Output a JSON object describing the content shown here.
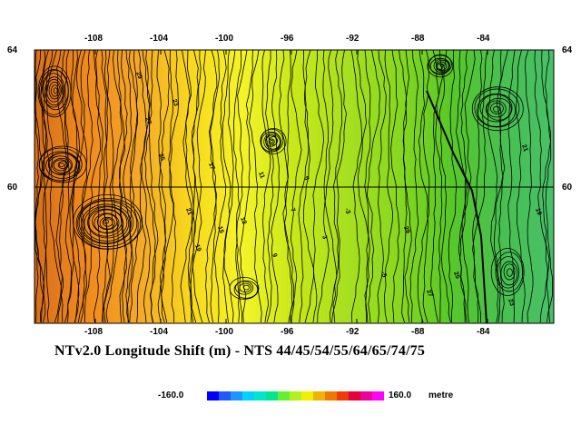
{
  "map": {
    "title": "NTv2.0 Longitude Shift (m) - NTS 44/45/54/55/64/65/74/75",
    "lon_labels": [
      "-108",
      "-104",
      "-100",
      "-96",
      "-92",
      "-88",
      "-84"
    ],
    "lat_labels": [
      "64",
      "60"
    ],
    "contour_labels": [
      "29",
      "27",
      "25",
      "23",
      "21",
      "19",
      "17",
      "15",
      "13",
      "11",
      "9",
      "7",
      "5",
      "3",
      "-3",
      "-5"
    ],
    "land_gradient_colors": [
      "#d8701c",
      "#f08a1c",
      "#f4a828",
      "#f8d81c",
      "#f4f428",
      "#c8e818",
      "#a8e020",
      "#88d820",
      "#58c828",
      "#48c050",
      "#48c068"
    ]
  },
  "legend": {
    "min_label": "-160.0",
    "max_label": "160.0",
    "unit_label": "metre",
    "colors": [
      "#0000ff",
      "#1e5aff",
      "#1e96ff",
      "#00d2ff",
      "#00e6c8",
      "#00e68c",
      "#64f032",
      "#b4f01e",
      "#f0f000",
      "#f0b400",
      "#f07800",
      "#f03c00",
      "#e6003c",
      "#f00096",
      "#ff00ff"
    ]
  }
}
